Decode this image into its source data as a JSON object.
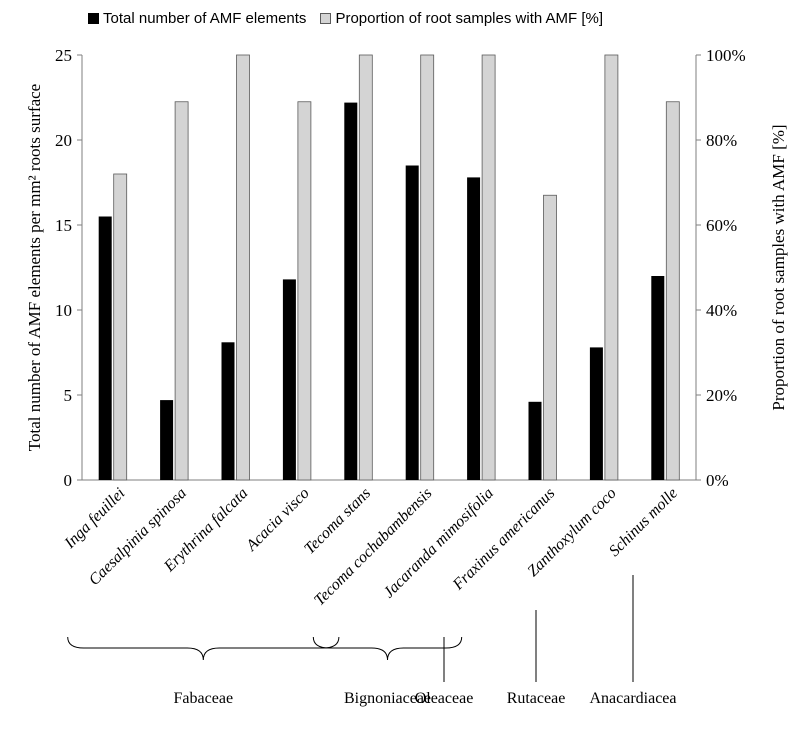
{
  "colors": {
    "series1": "#000000",
    "series2": "#d4d4d4",
    "series2_stroke": "#5a5a5a",
    "axis": "#7f7f7f"
  },
  "legend": {
    "series1": "Total number of AMF elements",
    "series2": "Proportion of root samples with AMF [%]"
  },
  "chart_data": {
    "type": "bar",
    "categories": [
      "Inga feuillei",
      "Caesalpinia spinosa",
      "Erythrina falcata",
      "Acacia visco",
      "Tecoma stans",
      "Tecoma cochabambensis",
      "Jacaranda mimosifolia",
      "Fraxinus americanus",
      "Zanthoxylum coco",
      "Schinus molle"
    ],
    "series": [
      {
        "name": "Total number of AMF elements",
        "axis": "left",
        "values": [
          15.5,
          4.7,
          8.1,
          11.8,
          22.2,
          18.5,
          17.8,
          4.6,
          7.8,
          12.0
        ]
      },
      {
        "name": "Proportion of root samples with AMF [%]",
        "axis": "right",
        "values": [
          72,
          89,
          100,
          89,
          100,
          100,
          100,
          67,
          100,
          89
        ]
      }
    ],
    "ylabel": "Total number of AMF elements per mm² roots surface",
    "y2label": "Proportion of root samples with AMF [%]",
    "ylim": [
      0,
      25
    ],
    "y2lim": [
      0,
      100
    ],
    "yticks": [
      "0",
      "5",
      "10",
      "15",
      "20",
      "25"
    ],
    "y2ticks": [
      "0%",
      "20%",
      "40%",
      "60%",
      "80%",
      "100%"
    ],
    "legend_position": "top",
    "grid": false,
    "families": [
      {
        "name": "Fabaceae",
        "from": 0,
        "to": 3,
        "marker": "brace"
      },
      {
        "name": "Bignoniaceae",
        "from": 4,
        "to": 5,
        "marker": "brace"
      },
      {
        "name": "Oleaceae",
        "from": 6,
        "to": 6,
        "marker": "line"
      },
      {
        "name": "Rutaceae",
        "from": 7,
        "to": 7,
        "marker": "line"
      },
      {
        "name": "Anacardiacea",
        "from": 8,
        "to": 9,
        "marker": "line"
      }
    ]
  }
}
